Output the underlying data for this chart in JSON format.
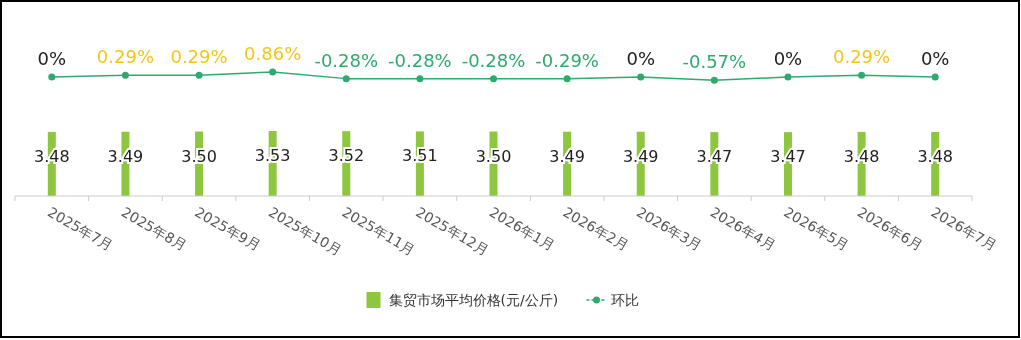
{
  "chart_data": [
    {
      "type": "line",
      "categories": [
        null,
        null,
        null,
        null,
        null,
        null,
        null,
        null,
        null,
        null,
        null,
        null,
        null
      ],
      "tick_labels": false,
      "legend": "bottom",
      "marker": "circle",
      "series": [
        {
          "name": "环比",
          "color": "#2eaa6e",
          "values": [
            0,
            0.29,
            0.29,
            0.86,
            -0.28,
            -0.28,
            -0.28,
            -0.29,
            0,
            -0.57,
            0,
            0.29,
            0
          ],
          "value_labels": [
            "0%",
            "0.29%",
            "0.29%",
            "0.86%",
            "-0.28%",
            "-0.28%",
            "-0.28%",
            "-0.29%",
            "0%",
            "-0.57%",
            "0%",
            "0.29%",
            "0%"
          ]
        }
      ]
    },
    {
      "type": "bar",
      "categories": [
        "2025年7月",
        "2025年8月",
        "2025年9月",
        "2025年10月",
        "2025年11月",
        "2025年12月",
        "2026年1月",
        "2026年2月",
        "2026年3月",
        "2026年4月",
        "2026年5月",
        "2026年6月",
        "2026年7月"
      ],
      "tick_labels": "x",
      "legend": "bottom",
      "series": [
        {
          "name": "集贸市场平均价格(元/公斤)",
          "color": "#8dc63f",
          "values": [
            3.48,
            3.49,
            3.5,
            3.53,
            3.52,
            3.51,
            3.5,
            3.49,
            3.49,
            3.47,
            3.47,
            3.48,
            3.48
          ],
          "value_labels": [
            "3.48",
            "3.49",
            "3.50",
            "3.53",
            "3.52",
            "3.51",
            "3.50",
            "3.49",
            "3.49",
            "3.47",
            "3.47",
            "3.48",
            "3.48"
          ]
        }
      ]
    }
  ]
}
